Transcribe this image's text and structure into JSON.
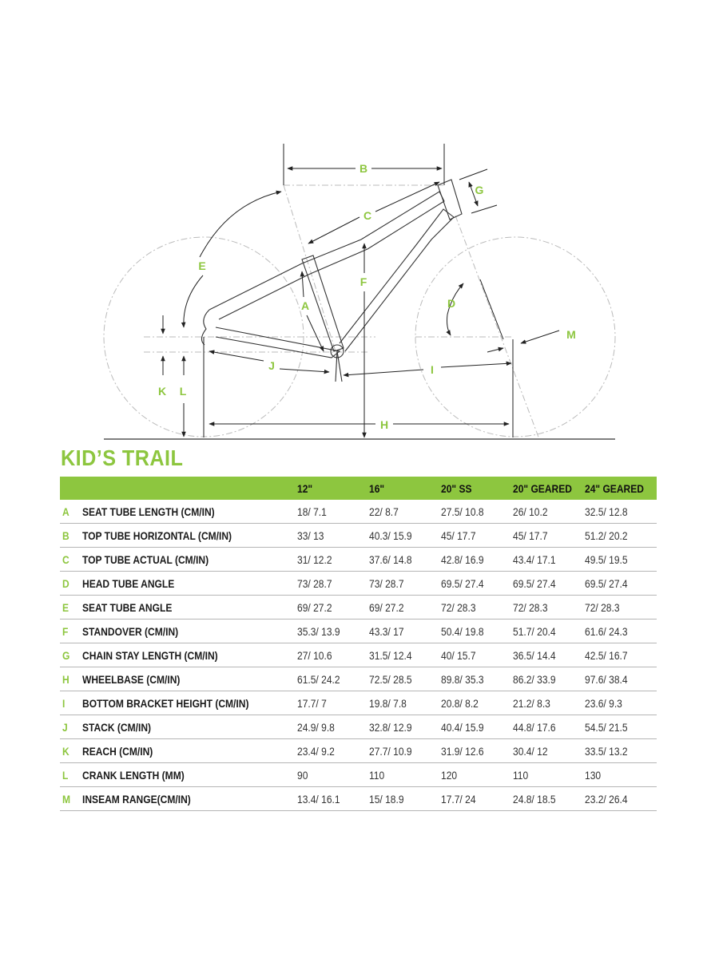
{
  "diagram": {
    "labels": {
      "A": "A",
      "B": "B",
      "C": "C",
      "D": "D",
      "E": "E",
      "F": "F",
      "G": "G",
      "H": "H",
      "I": "I",
      "J": "J",
      "K": "K",
      "L": "L",
      "M": "M"
    }
  },
  "title": "KID’S TRAIL",
  "accent_color": "#8dc63f",
  "table": {
    "columns": [
      "12\"",
      "16\"",
      "20\" SS",
      "20\" GEARED",
      "24\" GEARED"
    ],
    "rows": [
      {
        "letter": "A",
        "name": "SEAT TUBE LENGTH (CM/IN)",
        "values": [
          "18/ 7.1",
          "22/ 8.7",
          "27.5/ 10.8",
          "26/ 10.2",
          "32.5/ 12.8"
        ]
      },
      {
        "letter": "B",
        "name": "TOP TUBE HORIZONTAL (CM/IN)",
        "values": [
          "33/ 13",
          "40.3/ 15.9",
          "45/ 17.7",
          "45/ 17.7",
          "51.2/ 20.2"
        ]
      },
      {
        "letter": "C",
        "name": "TOP TUBE ACTUAL (CM/IN)",
        "values": [
          "31/ 12.2",
          "37.6/ 14.8",
          "42.8/ 16.9",
          "43.4/ 17.1",
          "49.5/ 19.5"
        ]
      },
      {
        "letter": "D",
        "name": "HEAD TUBE ANGLE",
        "values": [
          "73/ 28.7",
          "73/ 28.7",
          "69.5/ 27.4",
          "69.5/ 27.4",
          "69.5/ 27.4"
        ]
      },
      {
        "letter": "E",
        "name": "SEAT TUBE ANGLE",
        "values": [
          "69/ 27.2",
          "69/ 27.2",
          "72/ 28.3",
          "72/ 28.3",
          "72/ 28.3"
        ]
      },
      {
        "letter": "F",
        "name": "STANDOVER (CM/IN)",
        "values": [
          "35.3/ 13.9",
          "43.3/ 17",
          "50.4/ 19.8",
          "51.7/ 20.4",
          "61.6/ 24.3"
        ]
      },
      {
        "letter": "G",
        "name": "CHAIN STAY LENGTH (CM/IN)",
        "values": [
          "27/ 10.6",
          "31.5/ 12.4",
          "40/ 15.7",
          "36.5/ 14.4",
          "42.5/ 16.7"
        ]
      },
      {
        "letter": "H",
        "name": "WHEELBASE (CM/IN)",
        "values": [
          "61.5/ 24.2",
          "72.5/ 28.5",
          "89.8/ 35.3",
          "86.2/ 33.9",
          "97.6/ 38.4"
        ]
      },
      {
        "letter": "I",
        "name": "BOTTOM BRACKET HEIGHT (CM/IN)",
        "values": [
          "17.7/ 7",
          "19.8/ 7.8",
          "20.8/ 8.2",
          "21.2/ 8.3",
          "23.6/ 9.3"
        ]
      },
      {
        "letter": "J",
        "name": "STACK (CM/IN)",
        "values": [
          "24.9/ 9.8",
          "32.8/ 12.9",
          "40.4/ 15.9",
          "44.8/ 17.6",
          "54.5/ 21.5"
        ]
      },
      {
        "letter": "K",
        "name": "REACH (CM/IN)",
        "values": [
          "23.4/ 9.2",
          "27.7/ 10.9",
          "31.9/ 12.6",
          "30.4/ 12",
          "33.5/ 13.2"
        ]
      },
      {
        "letter": "L",
        "name": "CRANK LENGTH (MM)",
        "values": [
          "90",
          "110",
          "120",
          "110",
          "130"
        ]
      },
      {
        "letter": "M",
        "name": "INSEAM RANGE(CM/IN)",
        "values": [
          "13.4/ 16.1",
          "15/ 18.9",
          "17.7/ 24",
          "24.8/ 18.5",
          "23.2/ 26.4"
        ]
      }
    ]
  }
}
